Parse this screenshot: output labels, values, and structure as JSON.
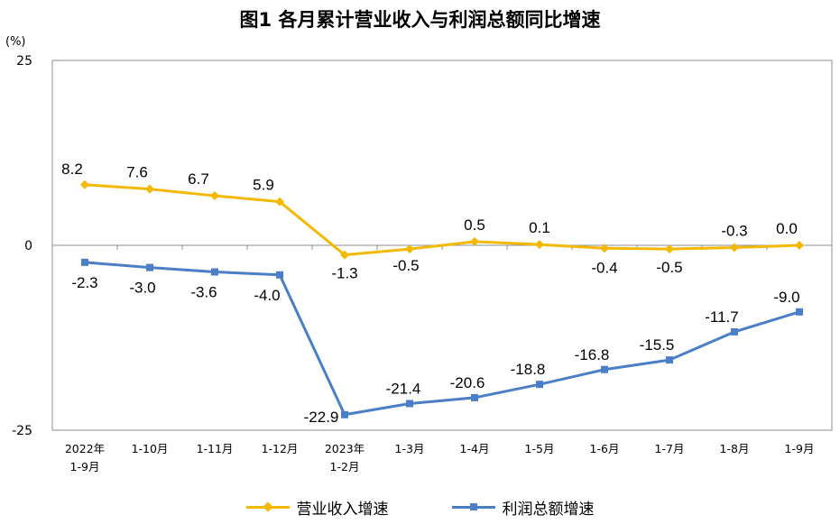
{
  "title": "图1  各月累计营业收入与利润总额同比增速",
  "chart_data": {
    "type": "line",
    "unit_label": "(%)",
    "categories": [
      [
        "2022年",
        "1-9月"
      ],
      [
        "1-10月"
      ],
      [
        "1-11月"
      ],
      [
        "1-12月"
      ],
      [
        "2023年",
        "1-2月"
      ],
      [
        "1-3月"
      ],
      [
        "1-4月"
      ],
      [
        "1-5月"
      ],
      [
        "1-6月"
      ],
      [
        "1-7月"
      ],
      [
        "1-8月"
      ],
      [
        "1-9月"
      ]
    ],
    "ylim": [
      -25,
      25
    ],
    "yticks": [
      {
        "value": 25,
        "label": "25"
      },
      {
        "value": 0,
        "label": "0"
      },
      {
        "value": -25,
        "label": "-25"
      }
    ],
    "grid": false,
    "legend_position": "bottom",
    "series": [
      {
        "name": "营业收入增速",
        "color": "#F5B800",
        "marker": "diamond",
        "values": [
          8.2,
          7.6,
          6.7,
          5.9,
          -1.3,
          -0.5,
          0.5,
          0.1,
          -0.4,
          -0.5,
          -0.3,
          0.0
        ],
        "labels": [
          "8.2",
          "7.6",
          "6.7",
          "5.9",
          "-1.3",
          "-0.5",
          "0.5",
          "0.1",
          "-0.4",
          "-0.5",
          "-0.3",
          "0.0"
        ]
      },
      {
        "name": "利润总额增速",
        "color": "#4A7EC7",
        "marker": "square",
        "values": [
          -2.3,
          -3.0,
          -3.6,
          -4.0,
          -22.9,
          -21.4,
          -20.6,
          -18.8,
          -16.8,
          -15.5,
          -11.7,
          -9.0
        ],
        "labels": [
          "-2.3",
          "-3.0",
          "-3.6",
          "-4.0",
          "-22.9",
          "-21.4",
          "-20.6",
          "-18.8",
          "-16.8",
          "-15.5",
          "-11.7",
          "-9.0"
        ]
      }
    ]
  }
}
